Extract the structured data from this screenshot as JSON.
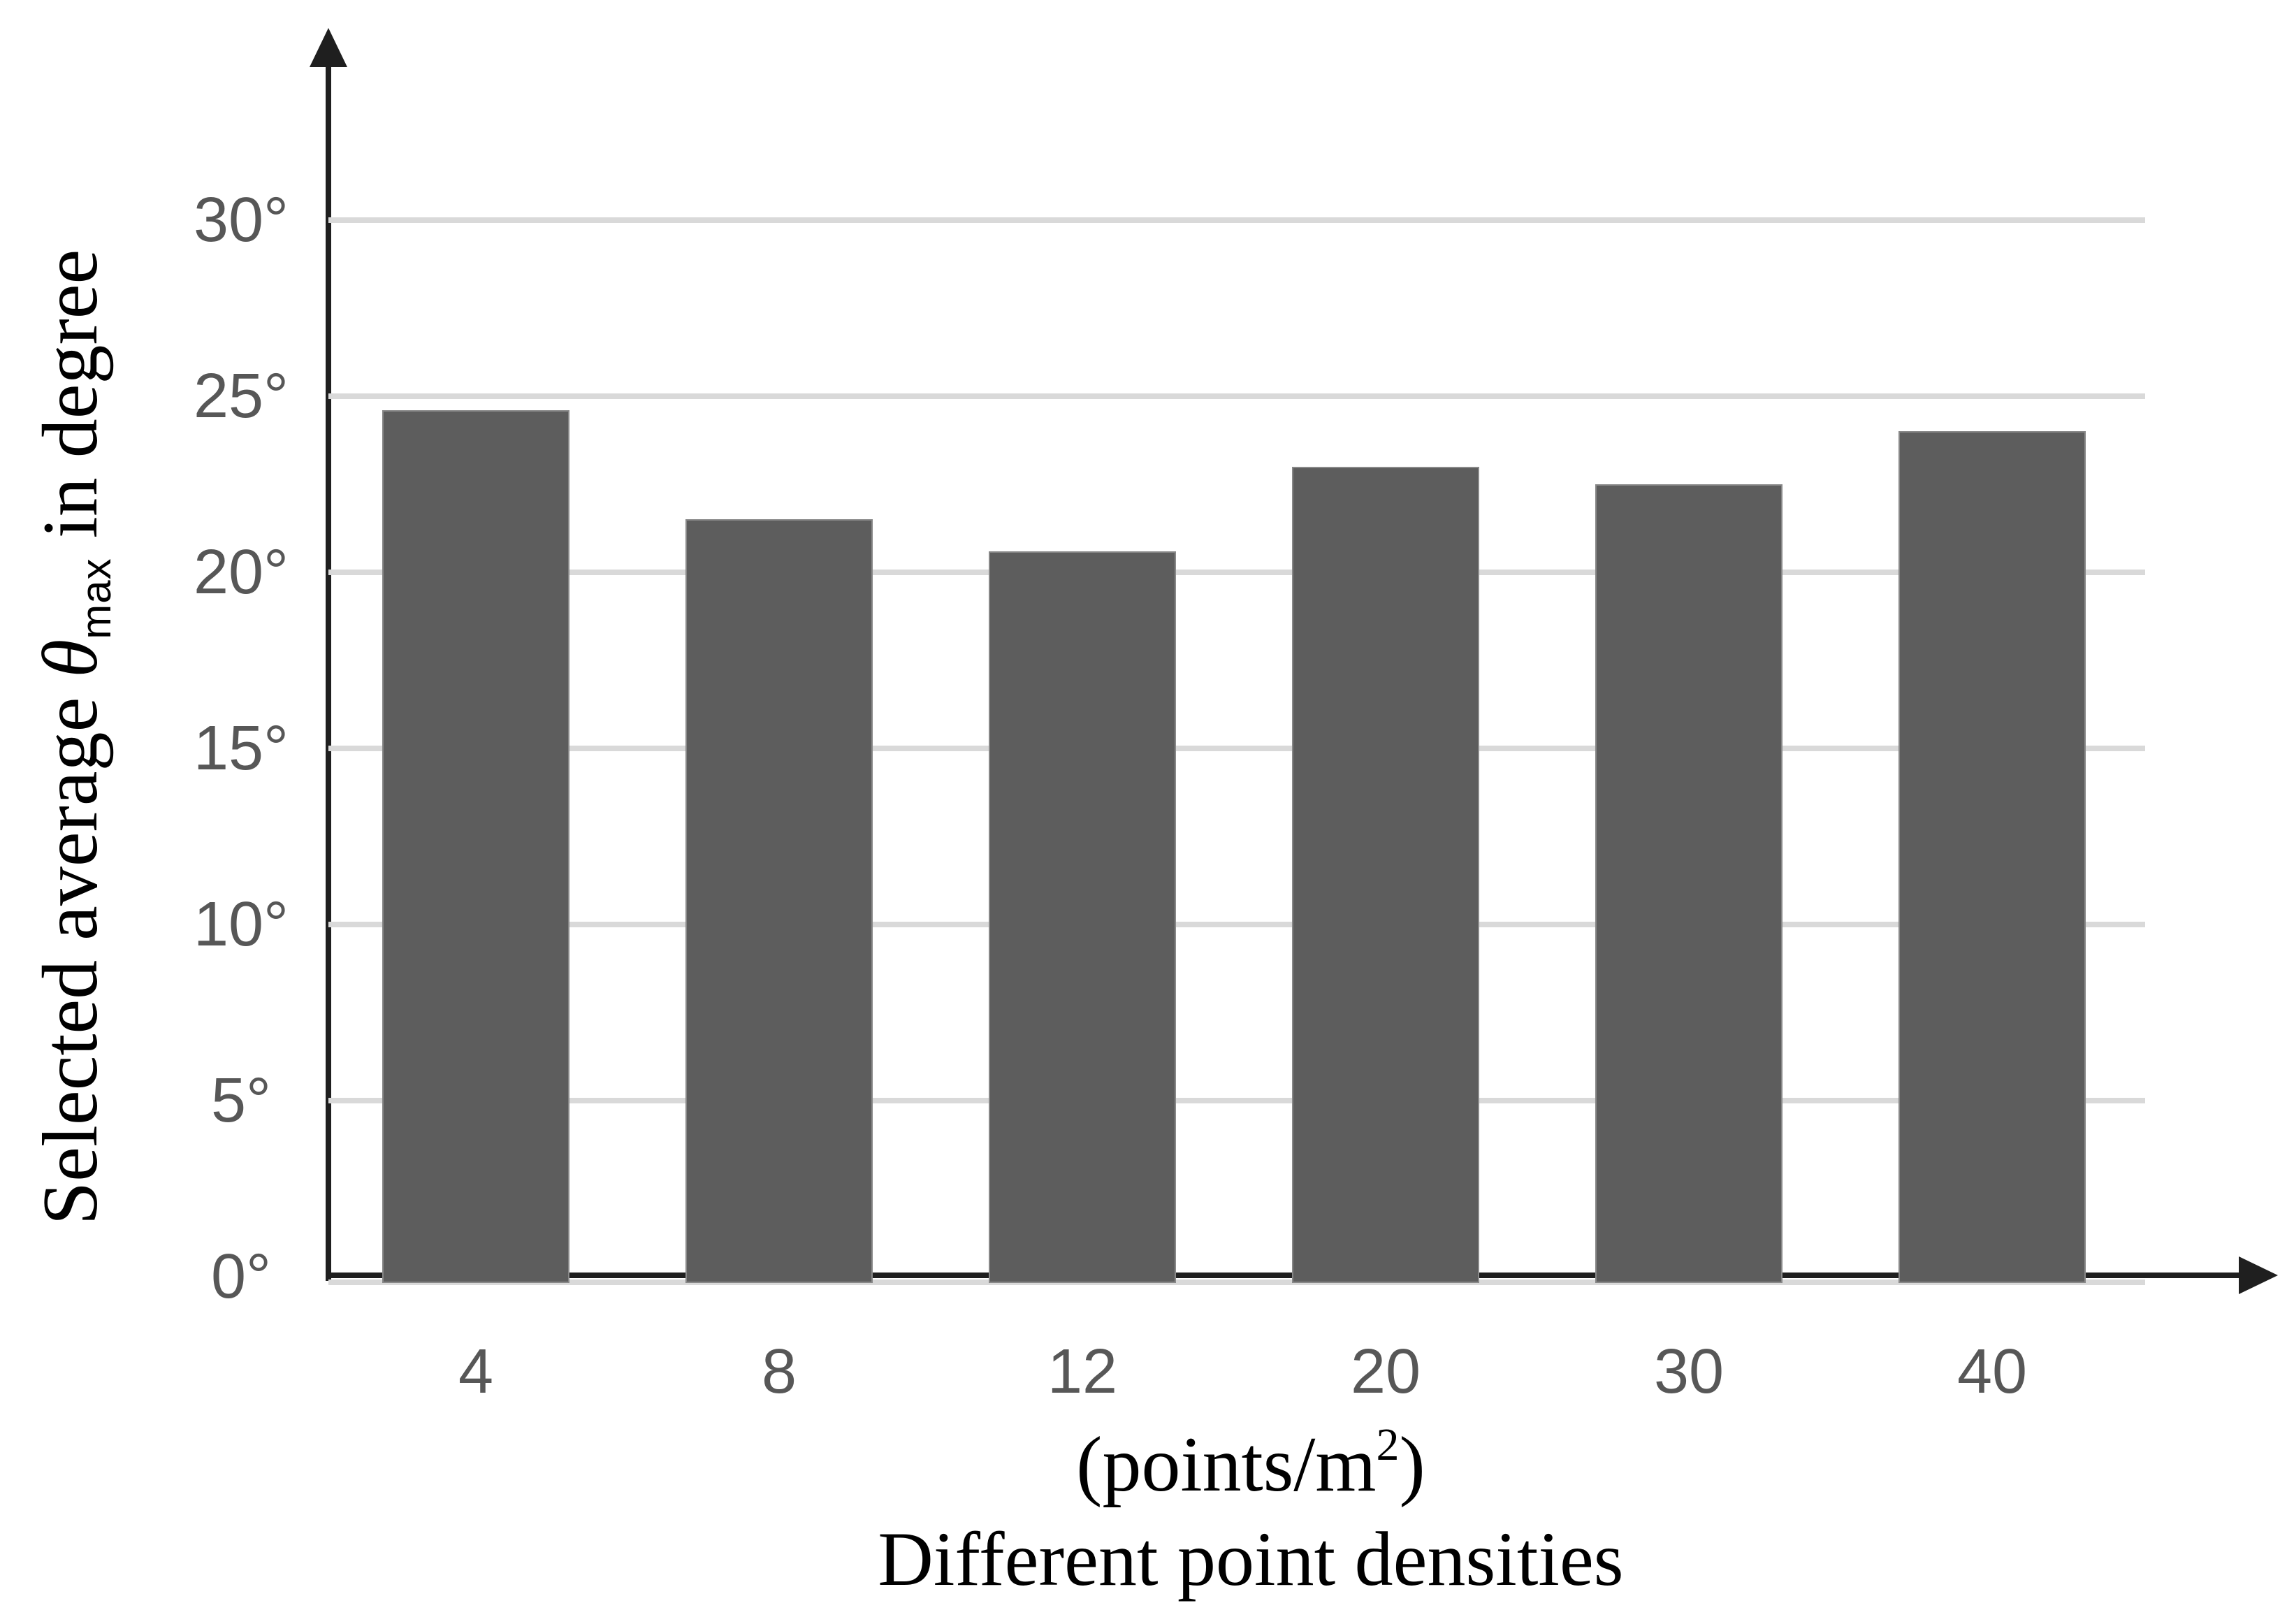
{
  "chart_data": {
    "type": "bar",
    "title": "",
    "categories": [
      "4",
      "8",
      "12",
      "20",
      "30",
      "40"
    ],
    "values": [
      24.6,
      21.5,
      20.6,
      23.0,
      22.5,
      24.0
    ],
    "series_name": "Selected average maximum angle",
    "xlabel": "Different point densities",
    "x_unit_label": {
      "prefix": "(points/m",
      "superscript": "2",
      "suffix": ")"
    },
    "ylabel": {
      "prefix": "Selected average ",
      "symbol": "θ",
      "subscript": "max",
      "suffix": " in degree"
    },
    "y_ticks": [
      {
        "value": 0,
        "label": "0°"
      },
      {
        "value": 5,
        "label": "5°"
      },
      {
        "value": 10,
        "label": "10°"
      },
      {
        "value": 15,
        "label": "15°"
      },
      {
        "value": 20,
        "label": "20°"
      },
      {
        "value": 25,
        "label": "25°"
      },
      {
        "value": 30,
        "label": "30°"
      }
    ],
    "gridline_values": [
      5,
      10,
      15,
      20,
      25,
      30
    ],
    "ylim": [
      0,
      35
    ],
    "grid": "horizontal",
    "legend": "none",
    "colors": {
      "bar": "#5d5d5d",
      "bar_border": "#888888",
      "grid": "#d9d9d9",
      "axis": "#1f1f1f",
      "tick_text": "#575757",
      "label_text": "#000000"
    }
  }
}
